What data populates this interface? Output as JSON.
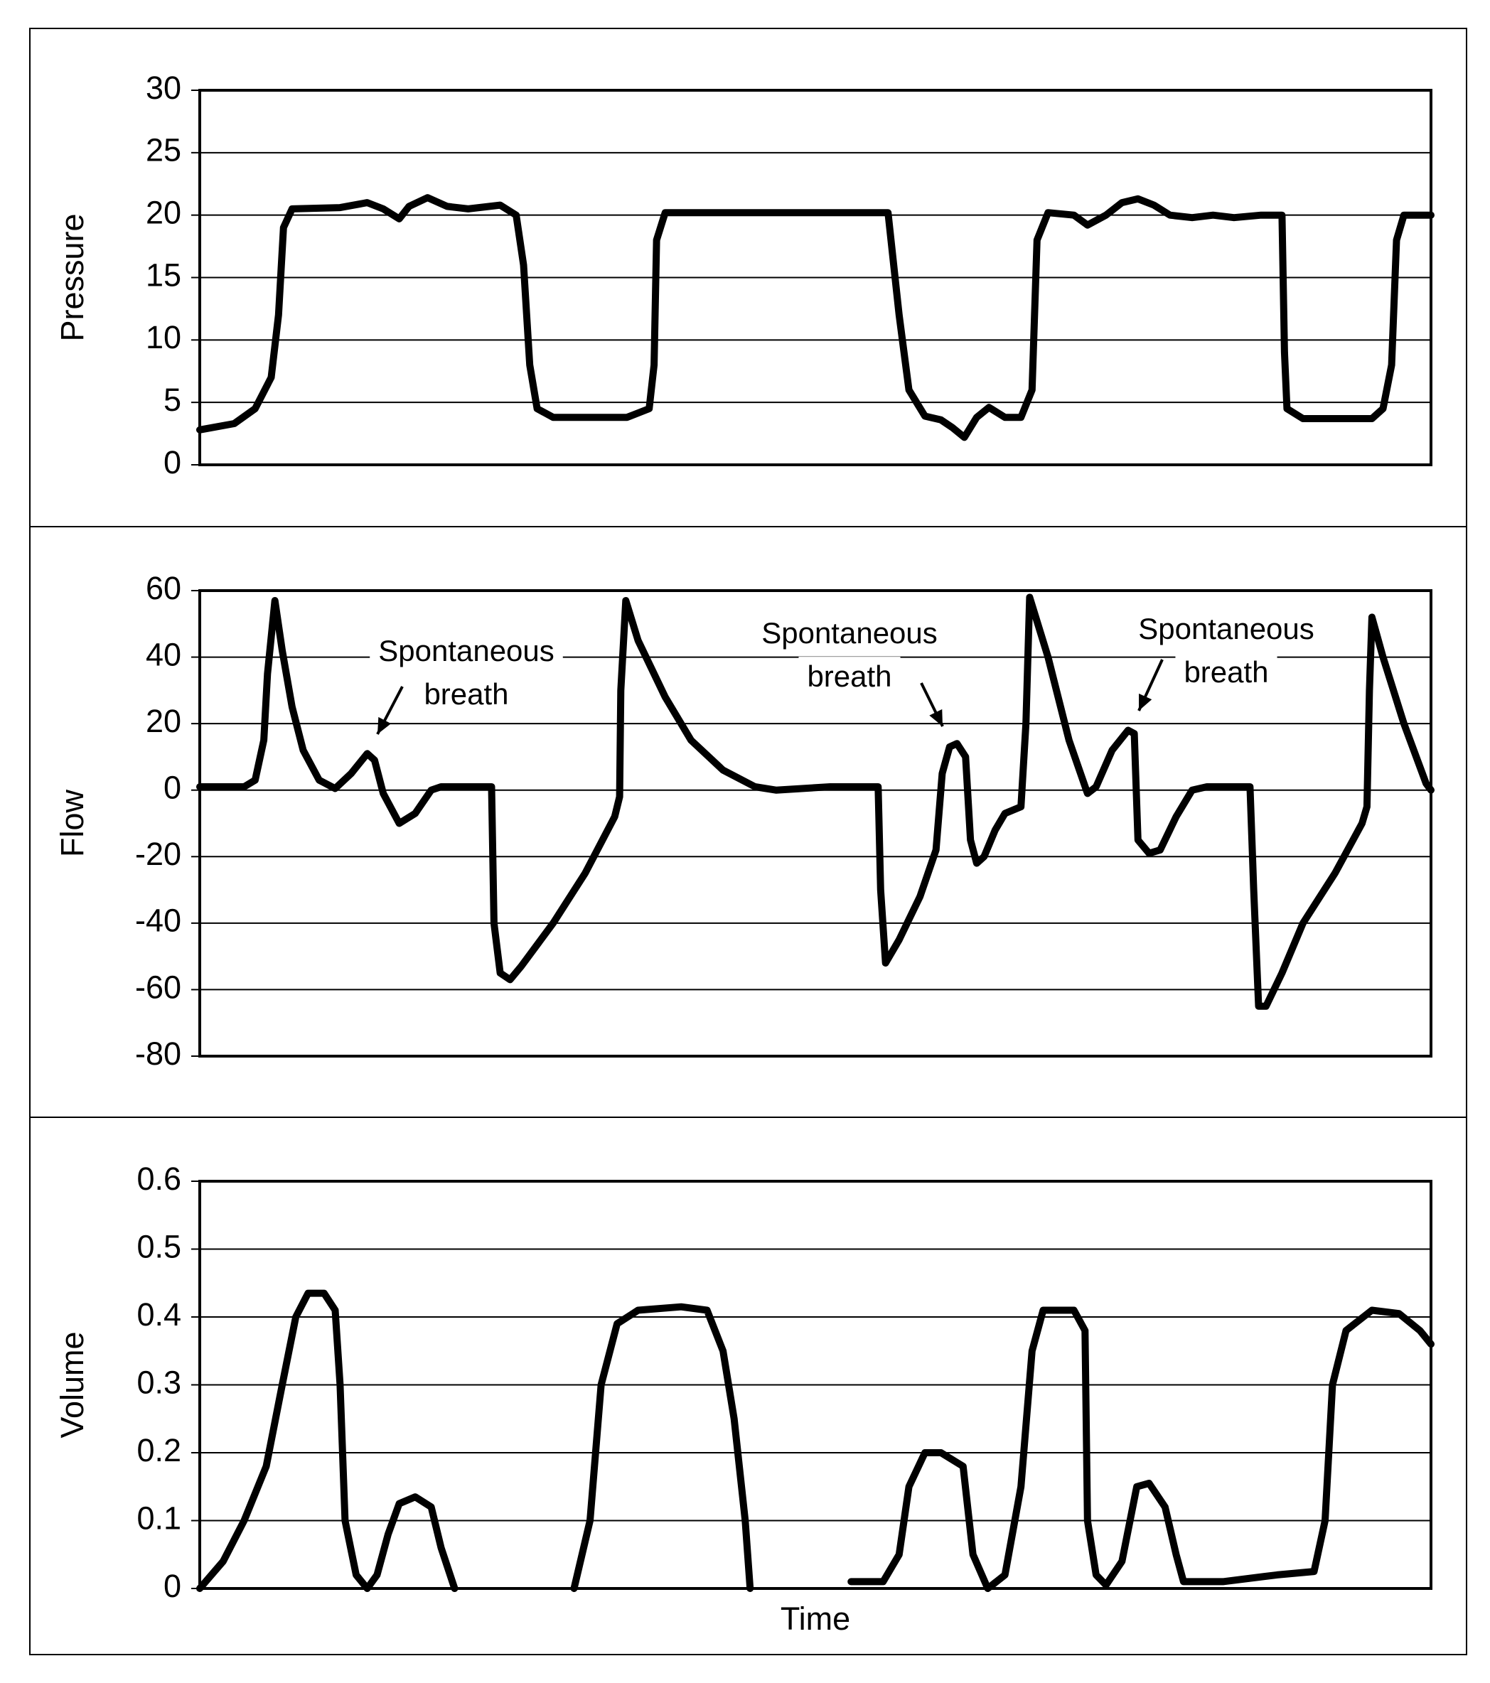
{
  "chart_data": [
    {
      "type": "line",
      "ylabel": "Pressure",
      "ylim": [
        0,
        30
      ],
      "yticks": [
        0,
        5,
        10,
        15,
        20,
        25,
        30
      ],
      "xlim": [
        0,
        100
      ],
      "grid": true,
      "color": "#000000",
      "x": [
        0,
        2.8,
        4.5,
        5.8,
        6.4,
        6.8,
        7.5,
        11.4,
        13.6,
        14.9,
        16.2,
        17.0,
        18.5,
        20.1,
        21.8,
        24.4,
        25.7,
        26.3,
        26.8,
        27.4,
        28.7,
        34.7,
        36.5,
        36.9,
        37.1,
        37.8,
        55.9,
        56.8,
        57.6,
        58.9,
        60.2,
        61.1,
        62.1,
        63.1,
        64.1,
        65.4,
        66.7,
        67.6,
        68.0,
        68.9,
        71.0,
        72.1,
        73.6,
        74.9,
        76.2,
        77.5,
        78.8,
        80.6,
        82.3,
        84.0,
        86.2,
        87.9,
        88.1,
        88.3,
        89.6,
        95.2,
        96.1,
        96.8,
        97.2,
        97.8,
        100
      ],
      "values": [
        2.8,
        3.3,
        4.5,
        7,
        12,
        19,
        20.5,
        20.6,
        21,
        20.5,
        19.7,
        20.7,
        21.4,
        20.7,
        20.5,
        20.8,
        20,
        16,
        8,
        4.5,
        3.8,
        3.8,
        4.5,
        8,
        18,
        20.2,
        20.2,
        12,
        6,
        3.9,
        3.6,
        3,
        2.2,
        3.8,
        4.6,
        3.8,
        3.8,
        6,
        18,
        20.2,
        20,
        19.2,
        20,
        21,
        21.3,
        20.8,
        20,
        19.8,
        20,
        19.8,
        20,
        20,
        9,
        4.5,
        3.7,
        3.7,
        4.5,
        8,
        18,
        20,
        20
      ]
    },
    {
      "type": "line",
      "ylabel": "Flow",
      "ylim": [
        -80,
        60
      ],
      "yticks": [
        -80,
        -60,
        -40,
        -20,
        0,
        20,
        40,
        60
      ],
      "xlim": [
        0,
        100
      ],
      "grid": true,
      "color": "#000000",
      "annotations": [
        [
          "Spontaneous",
          "breath"
        ],
        [
          "Spontaneous",
          "breath"
        ],
        [
          "Spontaneous",
          "breath"
        ]
      ],
      "x": [
        0,
        3.6,
        4.5,
        5.2,
        5.5,
        6.1,
        6.7,
        7.5,
        8.4,
        9.7,
        11.0,
        12.3,
        13.6,
        14.2,
        14.9,
        16.2,
        17.5,
        18.8,
        19.6,
        23.7,
        23.9,
        24.4,
        25.2,
        26.1,
        28.7,
        31.3,
        33.7,
        34.1,
        34.2,
        34.6,
        35.6,
        37.8,
        39.9,
        42.5,
        45.1,
        46.8,
        51.2,
        55.1,
        55.3,
        55.7,
        56.8,
        58.5,
        59.8,
        60.3,
        60.9,
        61.5,
        62.2,
        62.6,
        63.1,
        63.7,
        64.6,
        65.4,
        66.7,
        67.1,
        67.4,
        68.9,
        70.6,
        72.1,
        72.8,
        74.1,
        75.4,
        75.9,
        76.2,
        77.1,
        78.0,
        79.3,
        80.6,
        81.8,
        85.3,
        85.6,
        86.0,
        86.6,
        87.9,
        89.6,
        92.2,
        94.4,
        94.8,
        95.0,
        95.2,
        96.1,
        97.8,
        99.6,
        100
      ],
      "values": [
        1,
        1,
        3,
        15,
        35,
        57,
        42,
        25,
        12,
        3,
        0.5,
        5,
        11,
        9,
        -1,
        -10,
        -7,
        0,
        1,
        1,
        -40,
        -55,
        -57,
        -53,
        -40,
        -25,
        -8,
        -2,
        30,
        57,
        45,
        28,
        15,
        6,
        1,
        0,
        1,
        1,
        -30,
        -52,
        -45,
        -32,
        -18,
        5,
        13,
        14,
        10,
        -15,
        -22,
        -20,
        -12,
        -7,
        -5,
        20,
        58,
        40,
        15,
        -1,
        1,
        12,
        18,
        17,
        -15,
        -19,
        -18,
        -8,
        0,
        1,
        1,
        -30,
        -65,
        -65,
        -55,
        -40,
        -25,
        -10,
        -5,
        30,
        52,
        40,
        20,
        2,
        0
      ]
    },
    {
      "type": "line",
      "ylabel": "Volume",
      "xlabel": "Time",
      "ylim": [
        0,
        0.6
      ],
      "yticks": [
        0,
        0.1,
        0.2,
        0.3,
        0.4,
        0.5,
        0.6
      ],
      "xlim": [
        0,
        100
      ],
      "grid": true,
      "color": "#000000",
      "x": [
        0,
        1.9,
        3.6,
        5.4,
        6.7,
        7.8,
        8.8,
        10.1,
        11.0,
        11.4,
        11.8,
        12.7,
        13.6,
        14.4,
        15.3,
        16.2,
        17.5,
        18.8,
        19.6,
        20.7,
        25,
        30.4,
        31.7,
        32.6,
        33.9,
        35.6,
        39.1,
        41.2,
        42.5,
        43.4,
        44.3,
        44.7,
        49,
        52.9,
        55.5,
        56.8,
        57.6,
        58.9,
        60.2,
        62.0,
        62.8,
        64.0,
        65.4,
        66.7,
        67.6,
        68.5,
        71.0,
        71.9,
        72.1,
        72.8,
        73.6,
        74.9,
        76.1,
        77.1,
        78.4,
        79.3,
        79.9,
        83.1,
        87.5,
        90.5,
        91.4,
        92.0,
        93.1,
        95.2,
        97.4,
        99.1,
        100
      ],
      "values": [
        0,
        0.04,
        0.1,
        0.18,
        0.3,
        0.4,
        0.435,
        0.435,
        0.41,
        0.3,
        0.1,
        0.02,
        0,
        0.02,
        0.08,
        0.125,
        0.135,
        0.12,
        0.06,
        0,
        null,
        0,
        0.1,
        0.3,
        0.39,
        0.41,
        0.415,
        0.41,
        0.35,
        0.25,
        0.1,
        0,
        null,
        0.01,
        0.01,
        0.05,
        0.15,
        0.2,
        0.2,
        0.18,
        0.05,
        0,
        0.02,
        0.15,
        0.35,
        0.41,
        0.41,
        0.38,
        0.1,
        0.02,
        0.005,
        0.04,
        0.15,
        0.155,
        0.12,
        0.05,
        0.01,
        0.01,
        0.02,
        0.025,
        0.1,
        0.3,
        0.38,
        0.41,
        0.405,
        0.38,
        0.36
      ]
    }
  ]
}
